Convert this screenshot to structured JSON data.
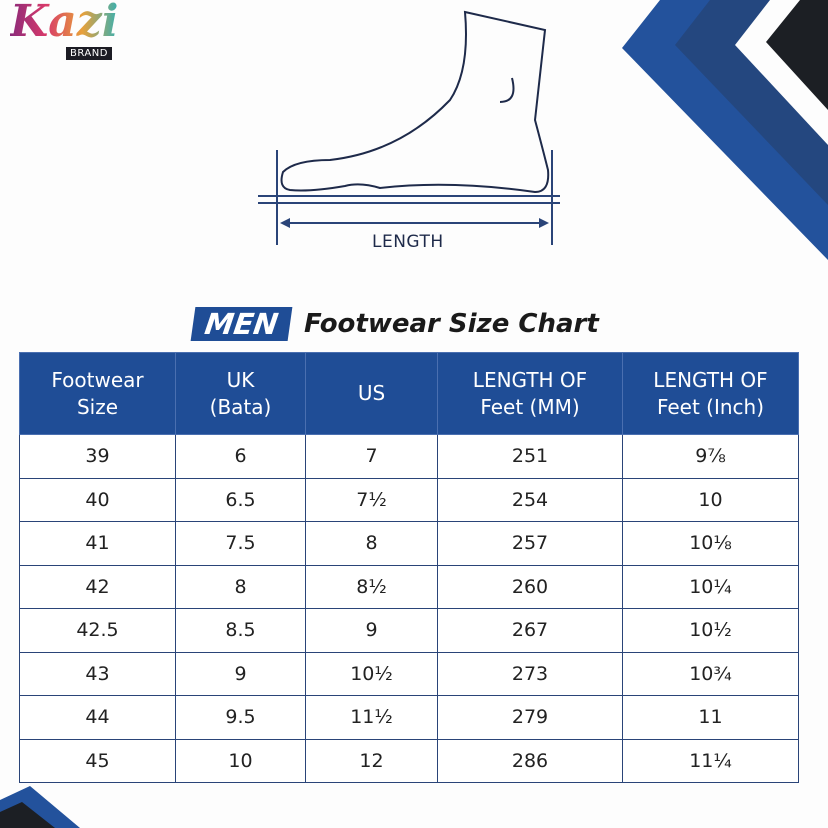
{
  "brand": {
    "logo_text": "Kazi",
    "logo_sub": "BRAND"
  },
  "diagram": {
    "length_label": "LENGTH"
  },
  "title": {
    "highlight": "MEN",
    "rest": "Footwear Size Chart"
  },
  "colors": {
    "primary": "#1f4d96",
    "dark": "#1c1f24",
    "secondary": "#24477f"
  },
  "table": {
    "headers": [
      [
        "Footwear",
        "Size"
      ],
      [
        "UK",
        "(Bata)"
      ],
      [
        "US",
        ""
      ],
      [
        "LENGTH OF",
        "Feet (MM)"
      ],
      [
        "LENGTH OF",
        "Feet (Inch)"
      ]
    ],
    "rows": [
      [
        "39",
        "6",
        "7",
        "251",
        "9⅞"
      ],
      [
        "40",
        "6.5",
        "7½",
        "254",
        "10"
      ],
      [
        "41",
        "7.5",
        "8",
        "257",
        "10⅛"
      ],
      [
        "42",
        "8",
        "8½",
        "260",
        "10¼"
      ],
      [
        "42.5",
        "8.5",
        "9",
        "267",
        "10½"
      ],
      [
        "43",
        "9",
        "10½",
        "273",
        "10¾"
      ],
      [
        "44",
        "9.5",
        "11½",
        "279",
        "11"
      ],
      [
        "45",
        "10",
        "12",
        "286",
        "11¼"
      ]
    ]
  }
}
